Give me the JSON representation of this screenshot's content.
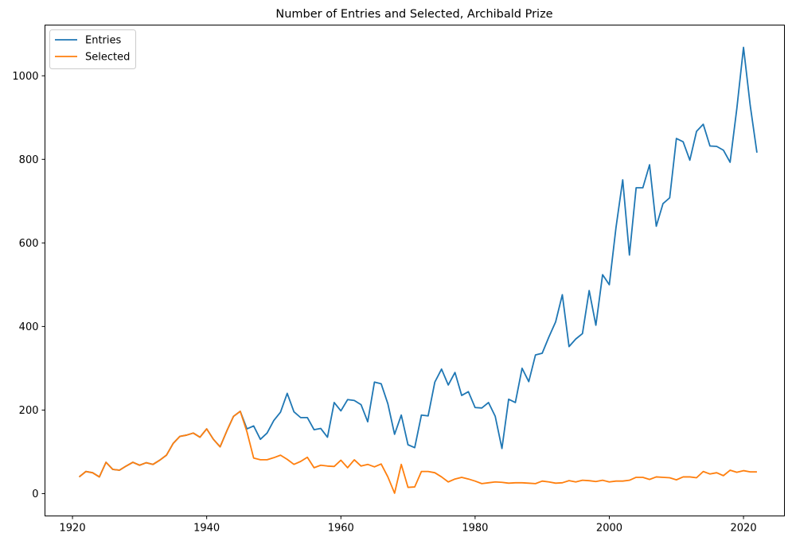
{
  "chart_data": {
    "type": "line",
    "title": "Number of Entries and Selected, Archibald Prize",
    "xlabel": "",
    "ylabel": "",
    "xlim": [
      1915.9,
      2026.1
    ],
    "ylim": [
      -53.4,
      1121.4
    ],
    "x_ticks": [
      1920,
      1940,
      1960,
      1980,
      2000,
      2020
    ],
    "y_ticks": [
      0,
      200,
      400,
      600,
      800,
      1000
    ],
    "grid": false,
    "legend_position": "top-left",
    "x": [
      1921,
      1922,
      1923,
      1924,
      1925,
      1926,
      1927,
      1928,
      1929,
      1930,
      1931,
      1932,
      1933,
      1934,
      1935,
      1936,
      1937,
      1938,
      1939,
      1940,
      1941,
      1942,
      1943,
      1944,
      1945,
      1946,
      1947,
      1948,
      1949,
      1950,
      1951,
      1952,
      1953,
      1954,
      1955,
      1956,
      1957,
      1958,
      1959,
      1960,
      1961,
      1962,
      1963,
      1964,
      1965,
      1966,
      1967,
      1968,
      1969,
      1970,
      1971,
      1972,
      1973,
      1974,
      1975,
      1976,
      1977,
      1978,
      1979,
      1980,
      1981,
      1982,
      1983,
      1984,
      1985,
      1986,
      1987,
      1988,
      1989,
      1990,
      1991,
      1992,
      1993,
      1994,
      1995,
      1996,
      1997,
      1998,
      1999,
      2000,
      2001,
      2002,
      2003,
      2004,
      2005,
      2006,
      2007,
      2008,
      2009,
      2010,
      2011,
      2012,
      2013,
      2014,
      2015,
      2016,
      2017,
      2018,
      2019,
      2020,
      2021,
      2022
    ],
    "series": [
      {
        "name": "Entries",
        "color": "#1f77b4",
        "values": [
          40,
          53,
          50,
          40,
          75,
          58,
          56,
          66,
          75,
          68,
          74,
          70,
          80,
          92,
          120,
          137,
          140,
          145,
          135,
          155,
          130,
          112,
          150,
          185,
          197,
          155,
          162,
          130,
          145,
          175,
          195,
          240,
          196,
          182,
          182,
          153,
          156,
          135,
          218,
          198,
          225,
          223,
          213,
          172,
          267,
          263,
          215,
          142,
          188,
          117,
          110,
          188,
          186,
          267,
          298,
          260,
          290,
          235,
          244,
          206,
          205,
          218,
          185,
          108,
          226,
          218,
          300,
          268,
          332,
          336,
          375,
          411,
          476,
          352,
          370,
          383,
          486,
          403,
          524,
          500,
          637,
          751,
          571,
          732,
          732,
          787,
          640,
          694,
          708,
          850,
          842,
          798,
          867,
          884,
          832,
          831,
          822,
          793,
          921,
          1068,
          929,
          816
        ]
      },
      {
        "name": "Selected",
        "color": "#ff7f0e",
        "values": [
          40,
          53,
          50,
          40,
          75,
          58,
          56,
          66,
          75,
          68,
          74,
          70,
          80,
          92,
          120,
          137,
          140,
          145,
          135,
          155,
          130,
          112,
          150,
          185,
          197,
          148,
          85,
          81,
          81,
          86,
          92,
          82,
          70,
          77,
          87,
          62,
          68,
          66,
          65,
          80,
          62,
          81,
          66,
          70,
          64,
          71,
          40,
          1,
          70,
          15,
          16,
          53,
          53,
          50,
          40,
          28,
          35,
          39,
          35,
          30,
          24,
          26,
          28,
          27,
          25,
          26,
          26,
          25,
          24,
          30,
          28,
          25,
          26,
          31,
          28,
          32,
          31,
          29,
          32,
          28,
          30,
          30,
          32,
          39,
          39,
          34,
          40,
          39,
          38,
          33,
          40,
          40,
          38,
          53,
          47,
          50,
          43,
          56,
          51,
          55,
          52,
          52
        ]
      }
    ]
  }
}
